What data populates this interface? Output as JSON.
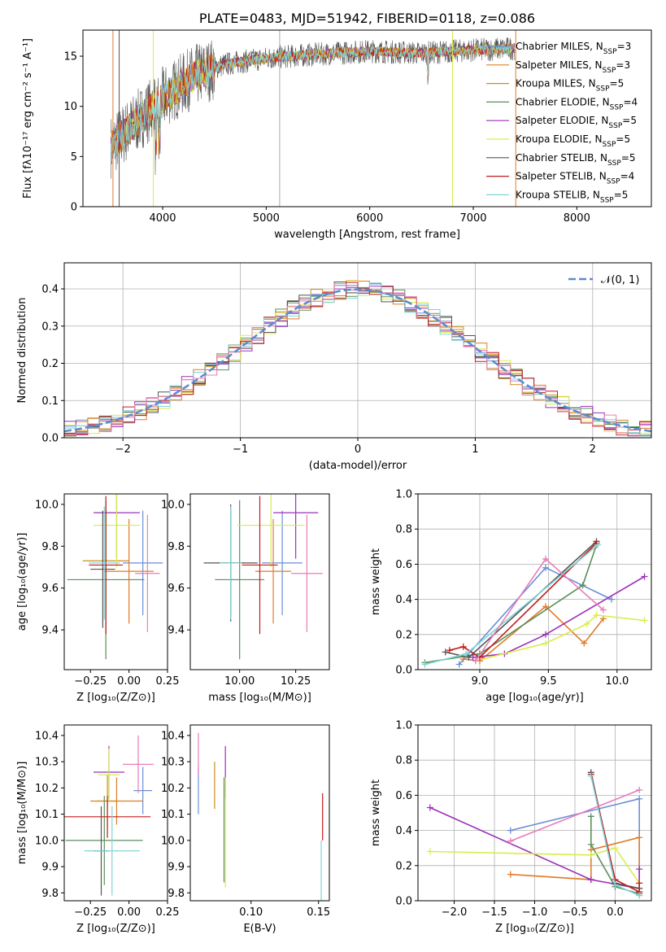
{
  "chart_data": [
    {
      "type": "line",
      "title": "PLATE=0483, MJD=51942, FIBERID=0118, z=0.086",
      "xlabel": "wavelength [Angstrom, rest frame]",
      "ylabel": "Flux [fλ10⁻¹⁷ erg cm⁻² s⁻¹ A⁻¹]",
      "xlim": [
        3230,
        8720
      ],
      "ylim": [
        0,
        17.6
      ],
      "xticks": [
        4000,
        5000,
        6000,
        7000,
        8000
      ],
      "yticks": [
        0,
        5,
        10,
        15
      ],
      "grid": false,
      "legend_position": "top-right",
      "series": [
        {
          "name": "Chabrier MILES, N_SSP=3",
          "color": "#6a8fd8"
        },
        {
          "name": "Salpeter MILES, N_SSP=3",
          "color": "#e07b2a"
        },
        {
          "name": "Kroupa MILES, N_SSP=5",
          "color": "#d18b1c"
        },
        {
          "name": "Chabrier ELODIE, N_SSP=4",
          "color": "#5a8f5a"
        },
        {
          "name": "Salpeter ELODIE, N_SSP=5",
          "color": "#9b30b8"
        },
        {
          "name": "Kroupa ELODIE, N_SSP=5",
          "color": "#d9ec4c"
        },
        {
          "name": "Chabrier STELIB, N_SSP=5",
          "color": "#555555"
        },
        {
          "name": "Salpeter STELIB, N_SSP=4",
          "color": "#c41c1c"
        },
        {
          "name": "Kroupa STELIB, N_SSP=5",
          "color": "#7fd4d8"
        }
      ],
      "approx_trend": {
        "x": [
          3500,
          3700,
          4000,
          4300,
          4600,
          5000,
          5500,
          6000,
          6500,
          7000,
          7400
        ],
        "y": [
          6.0,
          8.0,
          10.8,
          13.0,
          14.2,
          14.8,
          15.2,
          15.5,
          15.3,
          15.6,
          15.8
        ]
      }
    },
    {
      "type": "line",
      "xlabel": "(data-model)/error",
      "ylabel": "Normed distribution",
      "xlim": [
        -2.5,
        2.5
      ],
      "ylim": [
        0,
        0.47
      ],
      "xticks": [
        -2,
        -1,
        0,
        1,
        2
      ],
      "yticks": [
        0.0,
        0.1,
        0.2,
        0.3,
        0.4
      ],
      "grid": true,
      "legend_position": "top-right",
      "reference_curve": {
        "name": "𝒩(0, 1)",
        "mean": 0,
        "sigma": 1,
        "color": "#5b8bd0"
      }
    },
    {
      "type": "scatter",
      "xlabel": "Z [log₁₀(Z/Z⊙)]",
      "ylabel": "age  [log₁₀(age/yr)]",
      "xlim": [
        -0.42,
        0.25
      ],
      "ylim": [
        9.21,
        10.05
      ],
      "xticks": [
        -0.25,
        0.0,
        0.25
      ],
      "yticks": [
        9.4,
        9.6,
        9.8,
        10.0
      ],
      "points": [
        {
          "x": 0.09,
          "y": 9.72,
          "xerr": 0.13,
          "yerr": 0.25,
          "color": "#6a8fd8"
        },
        {
          "x": 0.0,
          "y": 9.68,
          "xerr": 0.16,
          "yerr": 0.25,
          "color": "#e07b2a"
        },
        {
          "x": -0.15,
          "y": 9.73,
          "xerr": 0.15,
          "yerr": 0.25,
          "color": "#d18b1c"
        },
        {
          "x": -0.15,
          "y": 9.64,
          "xerr": 0.25,
          "yerr": 0.38,
          "color": "#5a8f5a"
        },
        {
          "x": -0.08,
          "y": 9.96,
          "xerr": 0.15,
          "yerr": 0.22,
          "color": "#9b30b8"
        },
        {
          "x": -0.08,
          "y": 9.9,
          "xerr": 0.15,
          "yerr": 0.2,
          "color": "#d9ec4c"
        },
        {
          "x": -0.17,
          "y": 9.69,
          "xerr": 0.08,
          "yerr": 0.28,
          "color": "#555555"
        },
        {
          "x": -0.15,
          "y": 9.71,
          "xerr": 0.11,
          "yerr": 0.33,
          "color": "#c41c1c"
        },
        {
          "x": -0.16,
          "y": 9.72,
          "xerr": 0.1,
          "yerr": 0.27,
          "color": "#7fd4d8"
        },
        {
          "x": 0.12,
          "y": 9.67,
          "xerr": 0.08,
          "yerr": 0.28,
          "color": "#e87db8"
        }
      ]
    },
    {
      "type": "scatter",
      "xlabel": "mass [log₁₀(M/M⊙)]",
      "xlim": [
        9.78,
        10.4
      ],
      "ylim": [
        9.21,
        10.05
      ],
      "xticks": [
        10.0,
        10.25
      ],
      "yticks": [
        9.4,
        9.6,
        9.8,
        10.0
      ],
      "points": [
        {
          "x": 10.19,
          "y": 9.72,
          "xerr": 0.09,
          "yerr": 0.25,
          "color": "#6a8fd8"
        },
        {
          "x": 10.15,
          "y": 9.68,
          "xerr": 0.08,
          "yerr": 0.25,
          "color": "#e07b2a"
        },
        {
          "x": 9.96,
          "y": 9.72,
          "xerr": 0.06,
          "yerr": 0.25,
          "color": "#d18b1c"
        },
        {
          "x": 10.0,
          "y": 9.64,
          "xerr": 0.11,
          "yerr": 0.38,
          "color": "#5a8f5a"
        },
        {
          "x": 10.25,
          "y": 9.96,
          "xerr": 0.1,
          "yerr": 0.22,
          "color": "#9b30b8"
        },
        {
          "x": 10.14,
          "y": 9.9,
          "xerr": 0.15,
          "yerr": 0.2,
          "color": "#d9ec4c"
        },
        {
          "x": 9.96,
          "y": 9.72,
          "xerr": 0.12,
          "yerr": 0.28,
          "color": "#555555"
        },
        {
          "x": 10.09,
          "y": 9.71,
          "xerr": 0.08,
          "yerr": 0.33,
          "color": "#c41c1c"
        },
        {
          "x": 9.96,
          "y": 9.72,
          "xerr": 0.05,
          "yerr": 0.27,
          "color": "#7fd4d8"
        },
        {
          "x": 10.3,
          "y": 9.67,
          "xerr": 0.07,
          "yerr": 0.28,
          "color": "#e87db8"
        }
      ]
    },
    {
      "type": "line",
      "xlabel": "age  [log₁₀(age/yr)]",
      "ylabel": "mass weight",
      "xlim": [
        8.55,
        10.25
      ],
      "ylim": [
        0,
        1
      ],
      "xticks": [
        9.0,
        9.5,
        10.0
      ],
      "yticks": [
        0.0,
        0.2,
        0.4,
        0.6,
        0.8,
        1.0
      ],
      "grid": true,
      "series": [
        {
          "color": "#6a8fd8",
          "x": [
            8.85,
            9.48,
            9.96
          ],
          "y": [
            0.03,
            0.58,
            0.4
          ]
        },
        {
          "color": "#e07b2a",
          "x": [
            8.88,
            9.0,
            9.48,
            9.76,
            9.9
          ],
          "y": [
            0.06,
            0.05,
            0.36,
            0.15,
            0.29
          ]
        },
        {
          "color": "#5a8f5a",
          "x": [
            8.6,
            9.0,
            9.75,
            9.85
          ],
          "y": [
            0.04,
            0.09,
            0.48,
            0.71
          ]
        },
        {
          "color": "#9b30b8",
          "x": [
            8.95,
            9.18,
            9.48,
            10.2
          ],
          "y": [
            0.07,
            0.09,
            0.2,
            0.53
          ]
        },
        {
          "color": "#d9ec4c",
          "x": [
            8.97,
            9.48,
            9.78,
            9.85,
            10.2
          ],
          "y": [
            0.05,
            0.15,
            0.26,
            0.31,
            0.28
          ]
        },
        {
          "color": "#555555",
          "x": [
            8.75,
            8.92,
            9.85
          ],
          "y": [
            0.1,
            0.07,
            0.73
          ]
        },
        {
          "color": "#c41c1c",
          "x": [
            8.78,
            8.88,
            9.0,
            9.85
          ],
          "y": [
            0.11,
            0.13,
            0.07,
            0.72
          ]
        },
        {
          "color": "#7fd4d8",
          "x": [
            8.6,
            8.9,
            9.86
          ],
          "y": [
            0.03,
            0.09,
            0.71
          ]
        },
        {
          "color": "#e87db8",
          "x": [
            8.97,
            9.48,
            9.9
          ],
          "y": [
            0.05,
            0.63,
            0.34
          ]
        }
      ]
    },
    {
      "type": "scatter",
      "xlabel": "Z [log₁₀(Z/Z⊙)]",
      "ylabel": "mass [log₁₀(M/M⊙)]",
      "xlim": [
        -0.42,
        0.25
      ],
      "ylim": [
        9.77,
        10.44
      ],
      "xticks": [
        -0.25,
        0.0,
        0.25
      ],
      "yticks": [
        9.8,
        9.9,
        10.0,
        10.1,
        10.2,
        10.3,
        10.4
      ],
      "points": [
        {
          "x": 0.09,
          "y": 10.19,
          "xerr": 0.06,
          "yerr": 0.09,
          "color": "#6a8fd8"
        },
        {
          "x": -0.08,
          "y": 10.15,
          "xerr": 0.17,
          "yerr": 0.09,
          "color": "#e07b2a"
        },
        {
          "x": -0.14,
          "y": 10.15,
          "xerr": 0.07,
          "yerr": 0.1,
          "color": "#d18b1c"
        },
        {
          "x": -0.16,
          "y": 10.0,
          "xerr": 0.25,
          "yerr": 0.17,
          "color": "#5a8f5a"
        },
        {
          "x": -0.13,
          "y": 10.26,
          "xerr": 0.1,
          "yerr": 0.1,
          "color": "#9b30b8"
        },
        {
          "x": -0.13,
          "y": 10.25,
          "xerr": 0.07,
          "yerr": 0.1,
          "color": "#d9ec4c"
        },
        {
          "x": -0.18,
          "y": 9.96,
          "xerr": 0.05,
          "yerr": 0.17,
          "color": "#555555"
        },
        {
          "x": -0.14,
          "y": 10.09,
          "xerr": 0.28,
          "yerr": 0.08,
          "color": "#c41c1c"
        },
        {
          "x": -0.11,
          "y": 9.96,
          "xerr": 0.18,
          "yerr": 0.17,
          "color": "#7fd4d8"
        },
        {
          "x": 0.06,
          "y": 10.29,
          "xerr": 0.1,
          "yerr": 0.11,
          "color": "#e87db8"
        }
      ]
    },
    {
      "type": "scatter",
      "xlabel": "E(B-V)",
      "xlim": [
        0.055,
        0.158
      ],
      "ylim": [
        9.77,
        10.44
      ],
      "xticks": [
        0.1,
        0.15
      ],
      "yticks": [
        9.8,
        9.9,
        10.0,
        10.1,
        10.2,
        10.3,
        10.4
      ],
      "points": [
        {
          "x": 0.061,
          "y": 10.19,
          "yerr": 0.09,
          "color": "#6a8fd8"
        },
        {
          "x": 0.073,
          "y": 10.21,
          "yerr": 0.09,
          "color": "#d18b1c"
        },
        {
          "x": 0.08,
          "y": 10.04,
          "yerr": 0.2,
          "color": "#5a8f5a"
        },
        {
          "x": 0.081,
          "y": 10.26,
          "yerr": 0.1,
          "color": "#9b30b8"
        },
        {
          "x": 0.081,
          "y": 10.03,
          "yerr": 0.21,
          "color": "#d9ec4c"
        },
        {
          "x": 0.153,
          "y": 10.09,
          "yerr": 0.09,
          "color": "#c41c1c"
        },
        {
          "x": 0.152,
          "y": 9.88,
          "yerr": 0.12,
          "color": "#7fd4d8"
        },
        {
          "x": 0.061,
          "y": 10.33,
          "yerr": 0.08,
          "color": "#e87db8"
        }
      ]
    },
    {
      "type": "line",
      "xlabel": "Z [log₁₀(Z/Z⊙)]",
      "ylabel": "mass weight",
      "xlim": [
        -2.45,
        0.45
      ],
      "ylim": [
        0,
        1
      ],
      "xticks": [
        -2.0,
        -1.5,
        -1.0,
        -0.5,
        0.0
      ],
      "yticks": [
        0.0,
        0.2,
        0.4,
        0.6,
        0.8,
        1.0
      ],
      "grid": true,
      "series": [
        {
          "color": "#6a8fd8",
          "x": [
            -1.3,
            0.3,
            0.3
          ],
          "y": [
            0.4,
            0.58,
            0.03
          ]
        },
        {
          "color": "#e07b2a",
          "x": [
            -1.3,
            -0.3,
            -0.3,
            0.3,
            0.3
          ],
          "y": [
            0.15,
            0.12,
            0.29,
            0.36,
            0.05
          ]
        },
        {
          "color": "#5a8f5a",
          "x": [
            -0.3,
            -0.3,
            0.0,
            0.3
          ],
          "y": [
            0.48,
            0.32,
            0.08,
            0.04
          ]
        },
        {
          "color": "#9b30b8",
          "x": [
            -2.3,
            -0.3,
            0.3,
            0.3
          ],
          "y": [
            0.53,
            0.12,
            0.07,
            0.18
          ]
        },
        {
          "color": "#d9ec4c",
          "x": [
            -2.3,
            -0.3,
            0.0,
            0.3
          ],
          "y": [
            0.28,
            0.26,
            0.3,
            0.1
          ]
        },
        {
          "color": "#555555",
          "x": [
            -0.3,
            0.0,
            0.3
          ],
          "y": [
            0.73,
            0.1,
            0.07
          ]
        },
        {
          "color": "#c41c1c",
          "x": [
            -0.3,
            0.0,
            0.3,
            0.3
          ],
          "y": [
            0.72,
            0.12,
            0.05,
            0.1
          ]
        },
        {
          "color": "#7fd4d8",
          "x": [
            -0.3,
            0.0,
            0.3
          ],
          "y": [
            0.71,
            0.09,
            0.03
          ]
        },
        {
          "color": "#e87db8",
          "x": [
            -1.3,
            0.3
          ],
          "y": [
            0.34,
            0.63
          ]
        }
      ]
    }
  ]
}
